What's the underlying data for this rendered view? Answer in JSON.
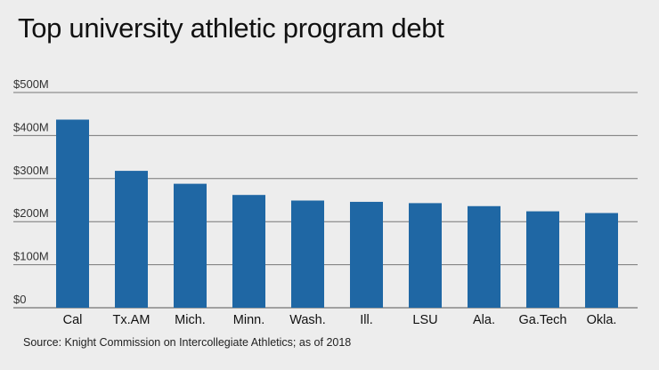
{
  "title": "Top university athletic program debt",
  "source": "Source: Knight Commission on Intercollegiate Athletics; as of 2018",
  "colors": {
    "bar": "#1f67a4",
    "background": "#ededed"
  },
  "chart_data": {
    "type": "bar",
    "title": "Top university athletic program debt",
    "xlabel": "",
    "ylabel": "",
    "categories": [
      "Cal",
      "Tx.AM",
      "Mich.",
      "Minn.",
      "Wash.",
      "Ill.",
      "LSU",
      "Ala.",
      "Ga.Tech",
      "Okla."
    ],
    "values": [
      437,
      318,
      288,
      262,
      249,
      246,
      243,
      236,
      224,
      220
    ],
    "units": "$ millions",
    "ylim": [
      0,
      500
    ],
    "yticks": [
      0,
      100,
      200,
      300,
      400,
      500
    ],
    "ytick_labels": [
      "$0",
      "$100M",
      "$200M",
      "$300M",
      "$400M",
      "$500M"
    ],
    "grid": true,
    "legend": "none"
  }
}
